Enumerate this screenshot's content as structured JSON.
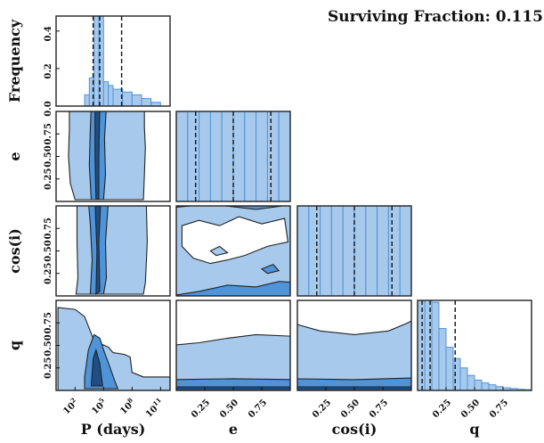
{
  "chart_data": {
    "type": "corner",
    "title": "Surviving Fraction: 0.115",
    "variables": [
      "P (days)",
      "e",
      "cos(i)",
      "q"
    ],
    "diag_ylabel": "Frequency",
    "colors": {
      "light": "#a7c9ec",
      "mid": "#4f94d9",
      "dark": "#1d4f86",
      "edge": "#222222"
    },
    "P": {
      "axis": "log10",
      "xlim": [
        0,
        12
      ],
      "ticks": [
        {
          "v": 2,
          "label": "10^2"
        },
        {
          "v": 5,
          "label": "10^5"
        },
        {
          "v": 8,
          "label": "10^8"
        },
        {
          "v": 11,
          "label": "10^11"
        }
      ],
      "hist_edges": [
        3,
        3.5,
        4,
        4.5,
        5,
        5.5,
        6,
        7,
        8,
        9,
        10,
        11
      ],
      "hist_values": [
        0.06,
        0.15,
        0.48,
        0.48,
        0.13,
        0.11,
        0.09,
        0.075,
        0.06,
        0.04,
        0.02
      ],
      "quantiles": [
        3.9,
        4.6,
        6.9
      ]
    },
    "e": {
      "xlim": [
        0,
        1
      ],
      "ticks": [
        0.25,
        0.5,
        0.75
      ],
      "hist_values": [
        0.9,
        0.905,
        0.91,
        0.915,
        0.92,
        0.925,
        0.93,
        0.935,
        0.94,
        0.945
      ],
      "quantiles": [
        0.17,
        0.5,
        0.83
      ]
    },
    "cosi": {
      "xlim": [
        0,
        1
      ],
      "ticks": [
        0.25,
        0.5,
        0.75
      ],
      "hist_values": [
        0.86,
        0.84,
        0.81,
        0.78,
        0.76,
        0.75,
        0.76,
        0.79,
        0.85,
        0.98
      ],
      "quantiles": [
        0.17,
        0.5,
        0.83
      ]
    },
    "q": {
      "xlim": [
        0,
        1
      ],
      "ticks": [
        0.25,
        0.5,
        0.75
      ],
      "hist_values": [
        0.93,
        0.78,
        0.47,
        0.33,
        0.23,
        0.17,
        0.12,
        0.08,
        0.055,
        0.04,
        0.03,
        0.02,
        0.014,
        0.01,
        0.006,
        0.004
      ],
      "quantiles": [
        0.04,
        0.11,
        0.33
      ]
    },
    "diag_ylim": [
      0,
      0.48
    ],
    "diag_yticks": [
      0.0,
      0.2,
      0.4
    ],
    "offdiag_yticks": [
      0.25,
      0.5,
      0.75
    ]
  }
}
